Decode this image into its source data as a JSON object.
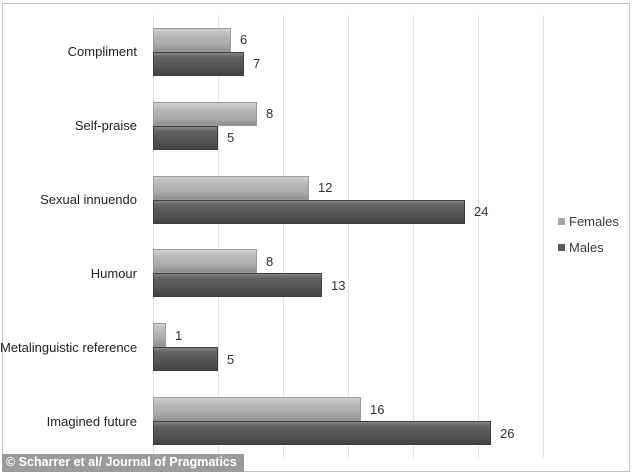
{
  "chart_data": {
    "type": "bar",
    "orientation": "horizontal",
    "title": "",
    "xlabel": "",
    "ylabel": "",
    "categories": [
      "Compliment",
      "Self-praise",
      "Sexual innuendo",
      "Humour",
      "Metalinguistic reference",
      "Imagined future"
    ],
    "series": [
      {
        "name": "Females",
        "values": [
          6,
          8,
          12,
          8,
          1,
          16
        ]
      },
      {
        "name": "Males",
        "values": [
          7,
          5,
          24,
          13,
          5,
          26
        ]
      }
    ],
    "xlim": [
      0,
      30
    ],
    "grid_step": 5,
    "grid": "vertical-only",
    "legend_position": "right",
    "data_labels": true,
    "colors": {
      "females": "#a6a6a6",
      "males": "#595959",
      "gridline": "#dbe5f1",
      "label_text": "#303030"
    }
  },
  "caption": {
    "text": "© Scharrer et al/ Journal of Pragmatics",
    "bg": "#9b9b9b",
    "color": "#ffffff"
  }
}
